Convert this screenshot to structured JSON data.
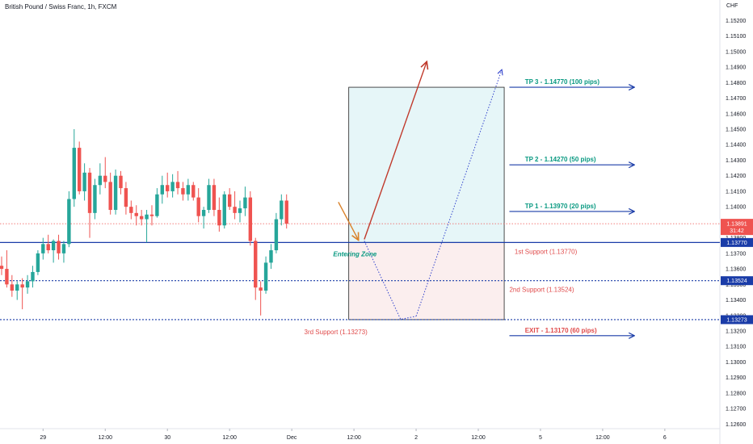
{
  "header": {
    "title": "British Pound / Swiss Franc, 1h, FXCM",
    "currency": "CHF"
  },
  "colors": {
    "up": "#26a69a",
    "down": "#ef5350",
    "support": "#1a3ca8",
    "tp_text": "#089981",
    "support_text": "#e04b4b",
    "arrow_solid": "#c0392b",
    "arrow_dotted": "#3344cc",
    "entry_arrow": "#d9822b",
    "profit_zone": "#e6f6f8",
    "loss_zone": "#fbeeee",
    "current_price": "#ef5350"
  },
  "chart_data": {
    "type": "candlestick",
    "symbol": "British Pound / Swiss Franc",
    "interval": "1h",
    "exchange": "FXCM",
    "y_axis": {
      "ticks": [
        1.152,
        1.151,
        1.15,
        1.149,
        1.148,
        1.147,
        1.146,
        1.145,
        1.144,
        1.143,
        1.142,
        1.141,
        1.14,
        1.139,
        1.138,
        1.137,
        1.136,
        1.135,
        1.134,
        1.133,
        1.132,
        1.131,
        1.13,
        1.129,
        1.128,
        1.127,
        1.126
      ],
      "tick_labels": [
        "1.15200",
        "1.15100",
        "1.15000",
        "1.14900",
        "1.14800",
        "1.14700",
        "1.14600",
        "1.14500",
        "1.14400",
        "1.14300",
        "1.14200",
        "1.14100",
        "1.14000",
        "1.13900",
        "1.13800",
        "1.13700",
        "1.13600",
        "1.13500",
        "1.13400",
        "1.13300",
        "1.13200",
        "1.13100",
        "1.13000",
        "1.12900",
        "1.12800",
        "1.12700",
        "1.12600"
      ],
      "range": [
        1.1255,
        1.1528
      ]
    },
    "x_axis": {
      "tick_labels": [
        "29",
        "12:00",
        "30",
        "12:00",
        "Dec",
        "12:00",
        "2",
        "12:00",
        "5",
        "12:00",
        "6"
      ],
      "tick_index": [
        8,
        20,
        32,
        44,
        56,
        68,
        80,
        92,
        104,
        116,
        128
      ],
      "range_index": [
        0,
        138
      ]
    },
    "candles": [
      {
        "o": 1.1362,
        "h": 1.1368,
        "l": 1.1356,
        "c": 1.136
      },
      {
        "o": 1.136,
        "h": 1.1372,
        "l": 1.1348,
        "c": 1.135
      },
      {
        "o": 1.135,
        "h": 1.1356,
        "l": 1.1342,
        "c": 1.1346
      },
      {
        "o": 1.1346,
        "h": 1.1352,
        "l": 1.134,
        "c": 1.135
      },
      {
        "o": 1.135,
        "h": 1.1354,
        "l": 1.1334,
        "c": 1.1348
      },
      {
        "o": 1.1348,
        "h": 1.1356,
        "l": 1.1344,
        "c": 1.1352
      },
      {
        "o": 1.1352,
        "h": 1.1362,
        "l": 1.1348,
        "c": 1.1358
      },
      {
        "o": 1.1358,
        "h": 1.1372,
        "l": 1.1356,
        "c": 1.137
      },
      {
        "o": 1.137,
        "h": 1.138,
        "l": 1.1366,
        "c": 1.1376
      },
      {
        "o": 1.1376,
        "h": 1.1382,
        "l": 1.137,
        "c": 1.1372
      },
      {
        "o": 1.1372,
        "h": 1.1379,
        "l": 1.1364,
        "c": 1.1378
      },
      {
        "o": 1.1378,
        "h": 1.1382,
        "l": 1.1366,
        "c": 1.137
      },
      {
        "o": 1.137,
        "h": 1.1378,
        "l": 1.1364,
        "c": 1.1376
      },
      {
        "o": 1.1376,
        "h": 1.141,
        "l": 1.1374,
        "c": 1.1405
      },
      {
        "o": 1.1405,
        "h": 1.145,
        "l": 1.14,
        "c": 1.1438
      },
      {
        "o": 1.1438,
        "h": 1.1442,
        "l": 1.1408,
        "c": 1.141
      },
      {
        "o": 1.141,
        "h": 1.1428,
        "l": 1.1404,
        "c": 1.1422
      },
      {
        "o": 1.1422,
        "h": 1.1425,
        "l": 1.138,
        "c": 1.1396
      },
      {
        "o": 1.1396,
        "h": 1.1418,
        "l": 1.1392,
        "c": 1.1414
      },
      {
        "o": 1.1414,
        "h": 1.1428,
        "l": 1.1408,
        "c": 1.142
      },
      {
        "o": 1.142,
        "h": 1.1432,
        "l": 1.1412,
        "c": 1.1416
      },
      {
        "o": 1.1416,
        "h": 1.1422,
        "l": 1.1395,
        "c": 1.1398
      },
      {
        "o": 1.1398,
        "h": 1.1424,
        "l": 1.1395,
        "c": 1.142
      },
      {
        "o": 1.142,
        "h": 1.1423,
        "l": 1.1408,
        "c": 1.1412
      },
      {
        "o": 1.1412,
        "h": 1.1416,
        "l": 1.1395,
        "c": 1.14
      },
      {
        "o": 1.14,
        "h": 1.1404,
        "l": 1.1392,
        "c": 1.1396
      },
      {
        "o": 1.1396,
        "h": 1.1401,
        "l": 1.1388,
        "c": 1.1394
      },
      {
        "o": 1.1394,
        "h": 1.1398,
        "l": 1.1388,
        "c": 1.1392
      },
      {
        "o": 1.1392,
        "h": 1.1398,
        "l": 1.1377,
        "c": 1.1395
      },
      {
        "o": 1.1395,
        "h": 1.1401,
        "l": 1.1388,
        "c": 1.1394
      },
      {
        "o": 1.1394,
        "h": 1.1412,
        "l": 1.1393,
        "c": 1.1408
      },
      {
        "o": 1.1408,
        "h": 1.142,
        "l": 1.1402,
        "c": 1.1414
      },
      {
        "o": 1.1414,
        "h": 1.1422,
        "l": 1.1406,
        "c": 1.141
      },
      {
        "o": 1.141,
        "h": 1.1421,
        "l": 1.1406,
        "c": 1.1416
      },
      {
        "o": 1.1416,
        "h": 1.1423,
        "l": 1.1408,
        "c": 1.1412
      },
      {
        "o": 1.1412,
        "h": 1.1416,
        "l": 1.1404,
        "c": 1.1408
      },
      {
        "o": 1.1408,
        "h": 1.1418,
        "l": 1.1404,
        "c": 1.1414
      },
      {
        "o": 1.1414,
        "h": 1.1416,
        "l": 1.1404,
        "c": 1.1406
      },
      {
        "o": 1.1406,
        "h": 1.1412,
        "l": 1.139,
        "c": 1.1394
      },
      {
        "o": 1.1394,
        "h": 1.14,
        "l": 1.1386,
        "c": 1.1398
      },
      {
        "o": 1.1398,
        "h": 1.1418,
        "l": 1.1396,
        "c": 1.1414
      },
      {
        "o": 1.1414,
        "h": 1.1418,
        "l": 1.1394,
        "c": 1.1398
      },
      {
        "o": 1.1398,
        "h": 1.1406,
        "l": 1.1384,
        "c": 1.1388
      },
      {
        "o": 1.1388,
        "h": 1.141,
        "l": 1.1386,
        "c": 1.1408
      },
      {
        "o": 1.1408,
        "h": 1.1412,
        "l": 1.1398,
        "c": 1.14
      },
      {
        "o": 1.14,
        "h": 1.141,
        "l": 1.1392,
        "c": 1.1396
      },
      {
        "o": 1.1396,
        "h": 1.1404,
        "l": 1.139,
        "c": 1.1399
      },
      {
        "o": 1.1399,
        "h": 1.1413,
        "l": 1.1394,
        "c": 1.1406
      },
      {
        "o": 1.1406,
        "h": 1.141,
        "l": 1.1375,
        "c": 1.1378
      },
      {
        "o": 1.1378,
        "h": 1.138,
        "l": 1.134,
        "c": 1.1348
      },
      {
        "o": 1.1348,
        "h": 1.1352,
        "l": 1.133,
        "c": 1.1346
      },
      {
        "o": 1.1346,
        "h": 1.1368,
        "l": 1.1344,
        "c": 1.1364
      },
      {
        "o": 1.1364,
        "h": 1.1376,
        "l": 1.136,
        "c": 1.1372
      },
      {
        "o": 1.1372,
        "h": 1.1396,
        "l": 1.137,
        "c": 1.1392
      },
      {
        "o": 1.1392,
        "h": 1.1408,
        "l": 1.1388,
        "c": 1.1404
      },
      {
        "o": 1.1404,
        "h": 1.1408,
        "l": 1.1386,
        "c": 1.13891
      }
    ],
    "current_price": {
      "value": 1.13891,
      "label": "1.13891",
      "countdown": "31:42"
    },
    "support_lines": [
      {
        "value": 1.1377,
        "label": "1.13770",
        "style": "solid"
      },
      {
        "value": 1.13524,
        "label": "1.13524",
        "style": "dotted"
      },
      {
        "value": 1.13273,
        "label": "1.13273",
        "style": "dotted"
      }
    ],
    "annotations": {
      "tp3": "TP 3 - 1.14770 (100 pips)",
      "tp2": "TP 2 - 1.14270 (50 pips)",
      "tp1": "TP 1 - 1.13970 (20 pips)",
      "exit": "EXIT - 1.13170 (60 pips)",
      "support1": "1st Support  (1.13770)",
      "support2": "2nd Support (1.13524)",
      "support3": "3rd Support (1.13273)",
      "entering_zone": "Entering Zone"
    },
    "trade_box": {
      "x_index": [
        67,
        97
      ],
      "entry": 1.1377,
      "target": 1.1477,
      "stop": 1.13273
    },
    "target_levels": [
      1.1477,
      1.1427,
      1.1397,
      1.1317
    ]
  }
}
